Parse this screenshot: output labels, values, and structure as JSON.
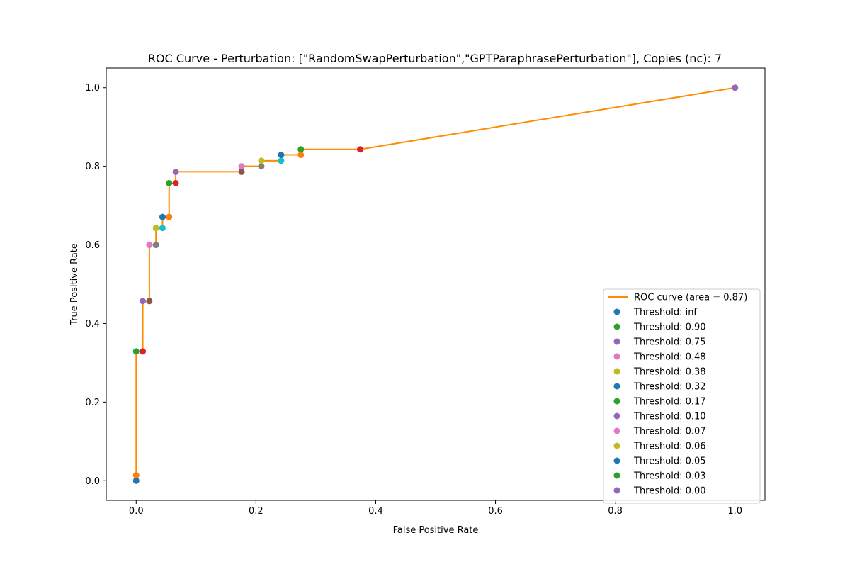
{
  "chart_data": {
    "type": "line",
    "title": "ROC Curve - Perturbation: [\"RandomSwapPerturbation\",\"GPTParaphrasePerturbation\"], Copies (nc): 7",
    "xlabel": "False Positive Rate",
    "ylabel": "True Positive Rate",
    "xlim": [
      -0.05,
      1.05
    ],
    "ylim": [
      -0.05,
      1.05
    ],
    "x_ticks": [
      "0.0",
      "0.2",
      "0.4",
      "0.6",
      "0.8",
      "1.0"
    ],
    "y_ticks": [
      "0.0",
      "0.2",
      "0.4",
      "0.6",
      "0.8",
      "1.0"
    ],
    "grid": false,
    "legend_position": "bottom-right",
    "curve": {
      "name": "ROC curve (area = 0.87)",
      "color": "#ff8c00",
      "x": [
        0.0,
        0.0,
        0.0,
        0.011,
        0.011,
        0.022,
        0.022,
        0.033,
        0.033,
        0.044,
        0.044,
        0.055,
        0.055,
        0.066,
        0.066,
        0.176,
        0.176,
        0.209,
        0.209,
        0.242,
        0.242,
        0.275,
        0.275,
        0.374,
        1.0
      ],
      "y": [
        0.0,
        0.014,
        0.329,
        0.329,
        0.457,
        0.457,
        0.6,
        0.6,
        0.643,
        0.643,
        0.671,
        0.671,
        0.757,
        0.757,
        0.786,
        0.786,
        0.8,
        0.8,
        0.814,
        0.814,
        0.829,
        0.829,
        0.843,
        0.843,
        1.0
      ]
    },
    "points": {
      "x": [
        0.0,
        0.0,
        0.0,
        0.011,
        0.011,
        0.022,
        0.022,
        0.033,
        0.033,
        0.044,
        0.044,
        0.055,
        0.055,
        0.066,
        0.066,
        0.176,
        0.176,
        0.209,
        0.209,
        0.242,
        0.242,
        0.275,
        0.275,
        0.374,
        1.0
      ],
      "y": [
        0.0,
        0.014,
        0.329,
        0.329,
        0.457,
        0.457,
        0.6,
        0.6,
        0.643,
        0.643,
        0.671,
        0.671,
        0.757,
        0.757,
        0.786,
        0.786,
        0.8,
        0.8,
        0.814,
        0.814,
        0.829,
        0.829,
        0.843,
        0.843,
        1.0
      ],
      "colors": [
        "#1f77b4",
        "#ff7f0e",
        "#2ca02c",
        "#d62728",
        "#9467bd",
        "#8c564b",
        "#e377c2",
        "#7f7f7f",
        "#bcbd22",
        "#17becf",
        "#1f77b4",
        "#ff7f0e",
        "#2ca02c",
        "#d62728",
        "#9467bd",
        "#8c564b",
        "#e377c2",
        "#7f7f7f",
        "#bcbd22",
        "#17becf",
        "#1f77b4",
        "#ff7f0e",
        "#2ca02c",
        "#d62728",
        "#9467bd"
      ]
    },
    "legend": [
      {
        "label": "ROC curve (area = 0.87)",
        "kind": "line",
        "color": "#ff8c00"
      },
      {
        "label": "Threshold: inf",
        "kind": "marker",
        "color": "#1f77b4"
      },
      {
        "label": "Threshold: 0.90",
        "kind": "marker",
        "color": "#2ca02c"
      },
      {
        "label": "Threshold: 0.75",
        "kind": "marker",
        "color": "#9467bd"
      },
      {
        "label": "Threshold: 0.48",
        "kind": "marker",
        "color": "#e377c2"
      },
      {
        "label": "Threshold: 0.38",
        "kind": "marker",
        "color": "#bcbd22"
      },
      {
        "label": "Threshold: 0.32",
        "kind": "marker",
        "color": "#1f77b4"
      },
      {
        "label": "Threshold: 0.17",
        "kind": "marker",
        "color": "#2ca02c"
      },
      {
        "label": "Threshold: 0.10",
        "kind": "marker",
        "color": "#9467bd"
      },
      {
        "label": "Threshold: 0.07",
        "kind": "marker",
        "color": "#e377c2"
      },
      {
        "label": "Threshold: 0.06",
        "kind": "marker",
        "color": "#bcbd22"
      },
      {
        "label": "Threshold: 0.05",
        "kind": "marker",
        "color": "#1f77b4"
      },
      {
        "label": "Threshold: 0.03",
        "kind": "marker",
        "color": "#2ca02c"
      },
      {
        "label": "Threshold: 0.00",
        "kind": "marker",
        "color": "#9467bd"
      }
    ]
  }
}
